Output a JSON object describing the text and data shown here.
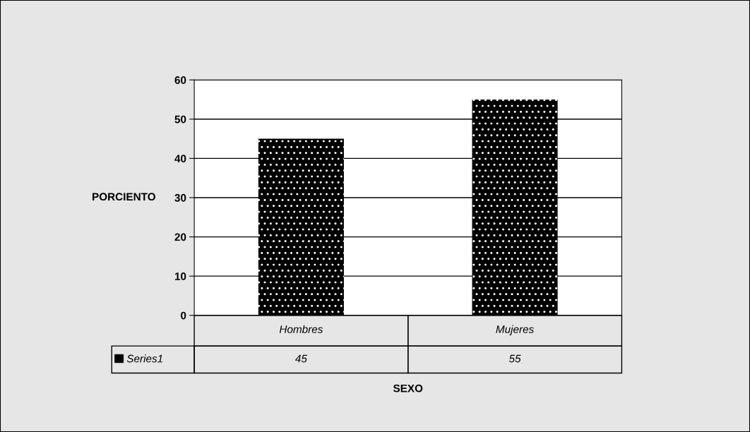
{
  "chart_data": {
    "type": "bar",
    "xlabel": "SEXO",
    "ylabel": "PORCIENTO",
    "categories": [
      "Hombres",
      "Mujeres"
    ],
    "series": [
      {
        "name": "Series1",
        "color": "#000000",
        "values": [
          45,
          55
        ]
      }
    ],
    "ylim": [
      0,
      60
    ],
    "yticks": [
      0,
      10,
      20,
      30,
      40,
      50,
      60
    ],
    "grid": "y",
    "legend": "bottom",
    "data_labels": true
  }
}
